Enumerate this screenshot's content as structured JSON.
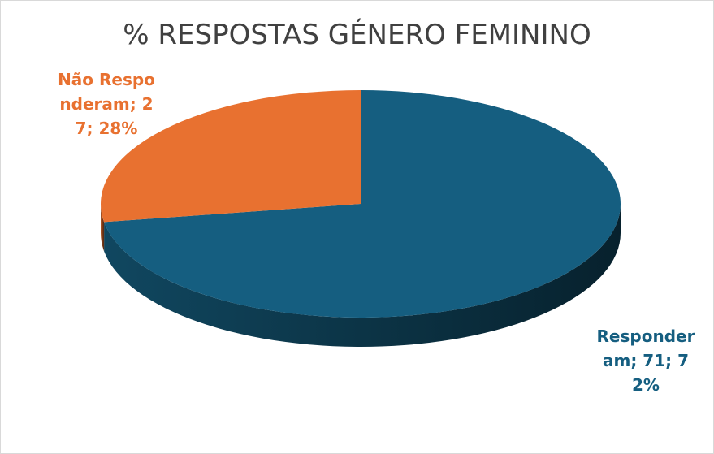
{
  "chart_data": {
    "type": "pie",
    "title": "% RESPOSTAS GÉNERO FEMININO",
    "categories": [
      "Não Responderam",
      "Responderam"
    ],
    "values": [
      27,
      71
    ],
    "value_labels": [
      "Não Responderam; 27; 28%",
      "Responderam; 71; 72%"
    ],
    "colors": [
      "#e87130",
      "#155e80"
    ]
  }
}
